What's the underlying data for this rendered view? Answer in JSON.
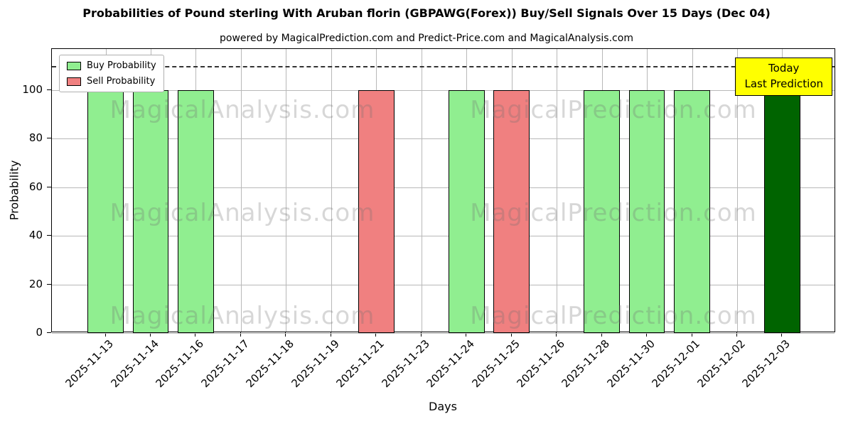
{
  "chart_data": {
    "type": "bar",
    "title": "Probabilities of Pound sterling With Aruban florin (GBPAWG(Forex)) Buy/Sell Signals Over 15 Days (Dec 04)",
    "subtitle": "powered by MagicalPrediction.com and Predict-Price.com and MagicalAnalysis.com",
    "xlabel": "Days",
    "ylabel": "Probability",
    "ylim": [
      0,
      117
    ],
    "yticks": [
      0,
      20,
      40,
      60,
      80,
      100
    ],
    "dashed_line_y": 110,
    "grid": true,
    "legend_position": "upper left",
    "categories": [
      "2025-11-13",
      "2025-11-14",
      "2025-11-16",
      "2025-11-17",
      "2025-11-18",
      "2025-11-19",
      "2025-11-21",
      "2025-11-23",
      "2025-11-24",
      "2025-11-25",
      "2025-11-26",
      "2025-11-28",
      "2025-11-30",
      "2025-12-01",
      "2025-12-02",
      "2025-12-03"
    ],
    "bars": [
      {
        "date": "2025-11-13",
        "value": 100,
        "type": "buy"
      },
      {
        "date": "2025-11-14",
        "value": 100,
        "type": "buy"
      },
      {
        "date": "2025-11-16",
        "value": 100,
        "type": "buy"
      },
      {
        "date": "2025-11-17",
        "value": 0,
        "type": "none"
      },
      {
        "date": "2025-11-18",
        "value": 0,
        "type": "none"
      },
      {
        "date": "2025-11-19",
        "value": 0,
        "type": "none"
      },
      {
        "date": "2025-11-21",
        "value": 100,
        "type": "sell"
      },
      {
        "date": "2025-11-23",
        "value": 0,
        "type": "none"
      },
      {
        "date": "2025-11-24",
        "value": 100,
        "type": "buy"
      },
      {
        "date": "2025-11-25",
        "value": 100,
        "type": "sell"
      },
      {
        "date": "2025-11-26",
        "value": 0,
        "type": "none"
      },
      {
        "date": "2025-11-28",
        "value": 100,
        "type": "buy"
      },
      {
        "date": "2025-11-30",
        "value": 100,
        "type": "buy"
      },
      {
        "date": "2025-12-01",
        "value": 100,
        "type": "buy"
      },
      {
        "date": "2025-12-02",
        "value": 0,
        "type": "none"
      },
      {
        "date": "2025-12-03",
        "value": 100,
        "type": "today"
      }
    ],
    "series": [
      {
        "name": "Buy Probability",
        "values": [
          100,
          100,
          100,
          0,
          0,
          0,
          0,
          0,
          100,
          0,
          0,
          100,
          100,
          100,
          0,
          0
        ]
      },
      {
        "name": "Sell Probability",
        "values": [
          0,
          0,
          0,
          0,
          0,
          0,
          100,
          0,
          0,
          100,
          0,
          0,
          0,
          0,
          0,
          0
        ]
      },
      {
        "name": "Today Last Prediction",
        "values": [
          0,
          0,
          0,
          0,
          0,
          0,
          0,
          0,
          0,
          0,
          0,
          0,
          0,
          0,
          0,
          100
        ]
      }
    ],
    "colors": {
      "buy": "#90EE90",
      "sell": "#F08080",
      "today": "#006400",
      "grid": "#b8b8b8",
      "dashed": "#333333",
      "annotation_bg": "#FFFF00"
    },
    "legend": [
      {
        "label": "Buy Probability",
        "type": "buy",
        "color": "#90EE90"
      },
      {
        "label": "Sell Probability",
        "type": "sell",
        "color": "#F08080"
      }
    ],
    "annotation_box": {
      "lines": [
        "Today",
        "Last Prediction"
      ],
      "bg": "#FFFF00"
    },
    "watermarks": [
      "MagicalAnalysis.com",
      "MagicalPrediction.com"
    ]
  }
}
